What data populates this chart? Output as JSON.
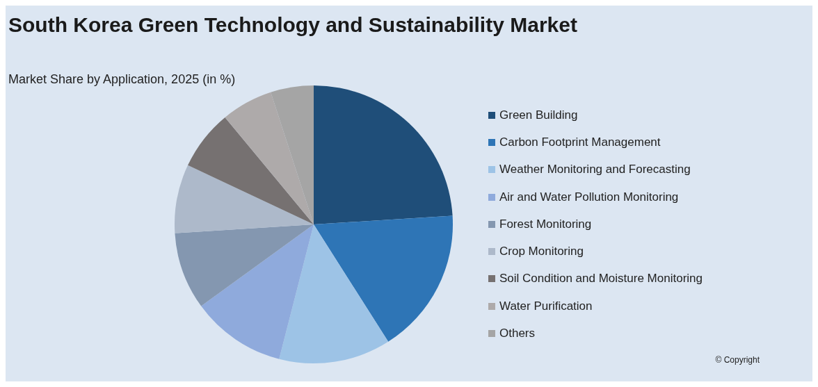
{
  "chart_data": {
    "type": "pie",
    "title": "South Korea Green Technology and Sustainability Market",
    "subtitle": "Market Share by Application, 2025 (in %)",
    "categories": [
      "Green Building",
      "Carbon Footprint Management",
      "Weather Monitoring and Forecasting",
      "Air and Water Pollution Monitoring",
      "Forest Monitoring",
      "Crop Monitoring",
      "Soil Condition and Moisture Monitoring",
      "Water Purification",
      "Others"
    ],
    "values": [
      24,
      17,
      13,
      11,
      9,
      8,
      7,
      6,
      5
    ],
    "colors": [
      "#1f4e79",
      "#2e75b6",
      "#9dc3e6",
      "#8faadc",
      "#8497b0",
      "#adb9ca",
      "#767171",
      "#aeaaaa",
      "#a5a5a5"
    ],
    "legend": "right",
    "annotations": [
      "© Copyright"
    ]
  }
}
